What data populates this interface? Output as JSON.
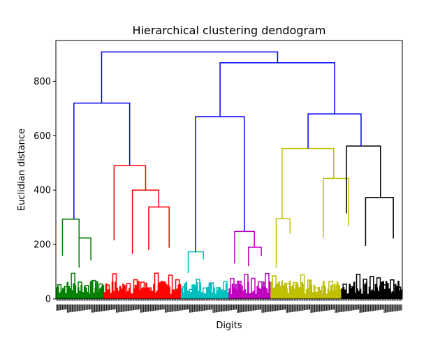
{
  "chart_data": {
    "type": "dendrogram",
    "title": "Hierarchical clustering dendogram",
    "xlabel": "Digits",
    "ylabel": "Euclidian distance",
    "ylim": [
      0,
      950
    ],
    "yticks": [
      0,
      200,
      400,
      600,
      800
    ],
    "x_ticklabels_note": "leaf labels too dense to read",
    "grid": false,
    "leaf_range": [
      0,
      100
    ],
    "link_color": "#0000ff",
    "clusters": [
      {
        "color": "#008000",
        "x_range": [
          0,
          13.9
        ],
        "root": {
          "x": 5.2,
          "height": 293
        },
        "subtree": [
          [
            1.9,
            6.7,
            293,
            158,
            224
          ],
          [
            6.7,
            10.1,
            224,
            115,
            142
          ]
        ]
      },
      {
        "color": "#ff0000",
        "x_range": [
          13.9,
          36.1
        ],
        "root": {
          "x": 21.3,
          "height": 490
        },
        "subtree": [
          [
            16.8,
            25.9,
            490,
            215,
            400
          ],
          [
            22.1,
            29.7,
            400,
            165,
            338
          ],
          [
            26.8,
            32.7,
            338,
            180,
            188
          ]
        ]
      },
      {
        "color": "#00bfbf",
        "x_range": [
          36.1,
          49.9
        ],
        "root": {
          "x": 40.3,
          "height": 173
        },
        "subtree": [
          [
            38.2,
            42.6,
            173,
            95,
            145
          ]
        ]
      },
      {
        "color": "#bf00bf",
        "x_range": [
          49.9,
          62.0
        ],
        "root": {
          "x": 54.4,
          "height": 248
        },
        "subtree": [
          [
            51.6,
            57.3,
            248,
            130,
            190
          ],
          [
            55.6,
            59.3,
            190,
            120,
            157
          ]
        ]
      },
      {
        "color": "#bfbf00",
        "x_range": [
          62.0,
          82.4
        ],
        "root": {
          "x": 72.8,
          "height": 553
        },
        "subtree": [
          [
            65.3,
            80.2,
            553,
            295,
            443
          ],
          [
            77.2,
            84.5,
            443,
            225,
            267
          ],
          [
            63.6,
            67.6,
            295,
            115,
            240
          ]
        ]
      },
      {
        "color": "#000000",
        "x_range": [
          82.4,
          100
        ],
        "root": {
          "x": 88.1,
          "height": 562
        },
        "subtree": [
          [
            83.9,
            93.7,
            562,
            315,
            373
          ],
          [
            89.4,
            97.4,
            373,
            195,
            222
          ]
        ]
      }
    ],
    "links": [
      {
        "left_x": 5.2,
        "right_x": 21.3,
        "height": 720,
        "left_h": 293,
        "right_h": 490
      },
      {
        "left_x": 40.3,
        "right_x": 54.4,
        "height": 670,
        "left_h": 173,
        "right_h": 248
      },
      {
        "left_x": 72.8,
        "right_x": 88.1,
        "height": 680,
        "left_h": 553,
        "right_h": 562
      },
      {
        "left_x": 47.4,
        "right_x": 80.5,
        "height": 868,
        "left_h": 670,
        "right_h": 680
      },
      {
        "left_x": 13.2,
        "right_x": 64.0,
        "height": 908,
        "left_h": 720,
        "right_h": 868
      }
    ]
  }
}
